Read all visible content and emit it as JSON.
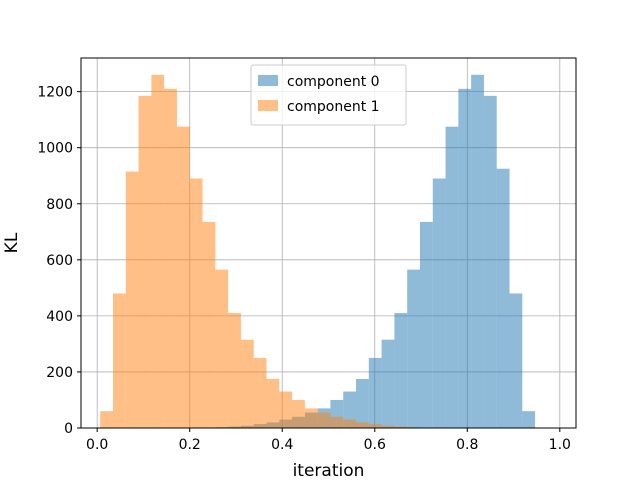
{
  "chart_data": {
    "type": "histogram",
    "title": "",
    "xlabel": "iteration",
    "ylabel": "KL",
    "xlim": [
      -0.035,
      1.035
    ],
    "ylim": [
      0,
      1320
    ],
    "xticks": [
      0.0,
      0.2,
      0.4,
      0.6,
      0.8,
      1.0
    ],
    "xtick_labels": [
      "0.0",
      "0.2",
      "0.4",
      "0.6",
      "0.8",
      "1.0"
    ],
    "yticks": [
      0,
      200,
      400,
      600,
      800,
      1000,
      1200
    ],
    "ytick_labels": [
      "0",
      "200",
      "400",
      "600",
      "800",
      "1000",
      "1200"
    ],
    "grid": true,
    "legend_position": "top-center",
    "series": [
      {
        "name": "component 0",
        "color": "#1f77b4",
        "alpha": 0.5,
        "bin_start": 0.0065,
        "bin_width": 0.02765,
        "counts": [
          0,
          0,
          0,
          0,
          0,
          0,
          0,
          0,
          0,
          3,
          5,
          8,
          14,
          20,
          30,
          40,
          55,
          70,
          100,
          130,
          175,
          250,
          315,
          410,
          565,
          735,
          890,
          1075,
          1210,
          1260,
          1185,
          925,
          480,
          60,
          0,
          0
        ]
      },
      {
        "name": "component 1",
        "color": "#ff7f0e",
        "alpha": 0.5,
        "bin_start": 0.0065,
        "bin_width": 0.02765,
        "counts": [
          60,
          480,
          915,
          1185,
          1260,
          1210,
          1075,
          890,
          735,
          565,
          410,
          315,
          250,
          175,
          130,
          100,
          70,
          55,
          40,
          30,
          20,
          14,
          8,
          5,
          3,
          0,
          0,
          0,
          0,
          0,
          0,
          0,
          0,
          0,
          0,
          0
        ]
      }
    ]
  }
}
